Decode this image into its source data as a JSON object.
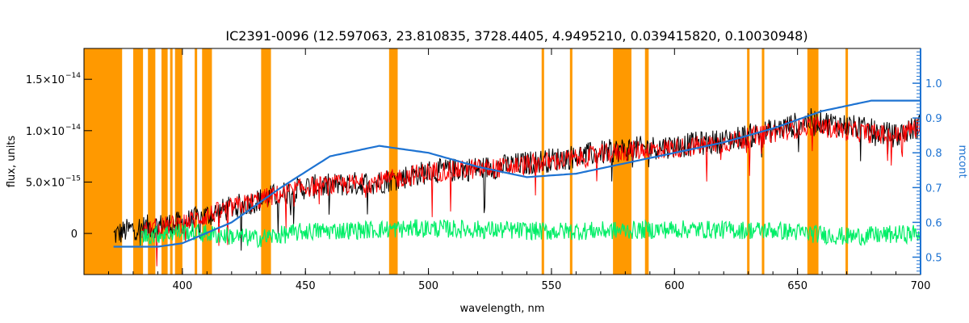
{
  "chart_data": {
    "type": "line",
    "title": "IC2391-0096    (12.597063, 23.810835, 3728.4405, 4.9495210, 0.039415820, 0.10030948)",
    "xlabel": "wavelength, nm",
    "ylabel": "flux, units",
    "y2label": "mcont",
    "xlim": [
      360,
      700
    ],
    "ylim": [
      -4e-15,
      1.8e-14
    ],
    "y2lim": [
      0.45,
      1.1
    ],
    "x_ticks": [
      400,
      450,
      500,
      550,
      600,
      650,
      700
    ],
    "y_ticks": [
      {
        "value": 0,
        "label": "0"
      },
      {
        "value": 5e-15,
        "label": "5.0×10",
        "exp": "−15"
      },
      {
        "value": 1e-14,
        "label": "1.0×10",
        "exp": "−14"
      },
      {
        "value": 1.5e-14,
        "label": "1.5×10",
        "exp": "−14"
      }
    ],
    "y2_ticks": [
      0.5,
      0.6,
      0.7,
      0.8,
      0.9,
      1.0
    ],
    "masked_regions": [
      [
        360,
        375.5
      ],
      [
        380,
        384
      ],
      [
        386,
        389
      ],
      [
        391.5,
        394
      ],
      [
        395,
        396
      ],
      [
        397,
        400
      ],
      [
        405,
        406
      ],
      [
        408,
        412
      ],
      [
        432,
        436
      ],
      [
        484,
        487.5
      ],
      [
        546,
        547
      ],
      [
        557.5,
        558.5
      ],
      [
        575,
        582.5
      ],
      [
        588,
        589.5
      ],
      [
        629.5,
        630.5
      ],
      [
        635.5,
        636.5
      ],
      [
        654,
        658.5
      ],
      [
        669.5,
        670.5
      ]
    ],
    "series": [
      {
        "color": "#000000",
        "anchors": [
          [
            372,
            -2e-16
          ],
          [
            380,
            5e-16
          ],
          [
            400,
            1e-15
          ],
          [
            420,
            2.5e-15
          ],
          [
            450,
            4.5e-15
          ],
          [
            480,
            5e-15
          ],
          [
            500,
            6e-15
          ],
          [
            530,
            6.5e-15
          ],
          [
            560,
            7.5e-15
          ],
          [
            580,
            8.2e-15
          ],
          [
            600,
            8.5e-15
          ],
          [
            620,
            9e-15
          ],
          [
            640,
            1e-14
          ],
          [
            655,
            1.1e-14
          ],
          [
            670,
            1.05e-14
          ],
          [
            690,
            9.5e-15
          ],
          [
            700,
            1.05e-14
          ]
        ]
      },
      {
        "color": "#ff0000",
        "anchors": [
          [
            383,
            2e-16
          ],
          [
            400,
            1e-15
          ],
          [
            420,
            2.5e-15
          ],
          [
            450,
            4.5e-15
          ],
          [
            480,
            5e-15
          ],
          [
            500,
            6e-15
          ],
          [
            530,
            6.4e-15
          ],
          [
            560,
            7.3e-15
          ],
          [
            580,
            8e-15
          ],
          [
            600,
            8.3e-15
          ],
          [
            620,
            8.8e-15
          ],
          [
            640,
            9.8e-15
          ],
          [
            655,
            1.05e-14
          ],
          [
            670,
            1e-14
          ],
          [
            690,
            9.5e-15
          ],
          [
            700,
            1.05e-14
          ]
        ]
      },
      {
        "color": "#00ee66",
        "anchors": [
          [
            383,
            -3e-16
          ],
          [
            400,
            2e-16
          ],
          [
            430,
            -5e-16
          ],
          [
            450,
            2e-16
          ],
          [
            500,
            5e-16
          ],
          [
            550,
            2e-16
          ],
          [
            580,
            3e-16
          ],
          [
            600,
            4e-16
          ],
          [
            640,
            3e-16
          ],
          [
            670,
            -3e-16
          ],
          [
            700,
            0
          ]
        ]
      },
      {
        "color": "#1e73d2",
        "axis": "y2",
        "anchors": [
          [
            372,
            0.53
          ],
          [
            390,
            0.53
          ],
          [
            400,
            0.54
          ],
          [
            420,
            0.6
          ],
          [
            440,
            0.7
          ],
          [
            460,
            0.79
          ],
          [
            480,
            0.82
          ],
          [
            500,
            0.8
          ],
          [
            520,
            0.76
          ],
          [
            540,
            0.73
          ],
          [
            560,
            0.74
          ],
          [
            580,
            0.77
          ],
          [
            600,
            0.8
          ],
          [
            620,
            0.83
          ],
          [
            640,
            0.87
          ],
          [
            660,
            0.92
          ],
          [
            680,
            0.95
          ],
          [
            700,
            0.95
          ]
        ]
      }
    ]
  }
}
